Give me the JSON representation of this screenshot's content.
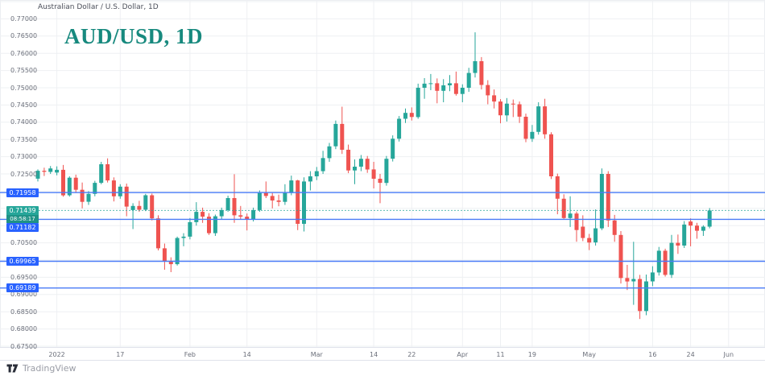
{
  "header": {
    "symbol_title": "Australian Dollar / U.S. Dollar, 1D",
    "watermark_title": "AUD/USD, 1D"
  },
  "footer": {
    "brand": "TradingView"
  },
  "colors": {
    "up": "#26a69a",
    "down": "#ef5350",
    "line_blue": "#4a7bf7",
    "label_blue": "#2962ff",
    "current_teal": "#26a69a",
    "current_timer_teal": "#1f9286",
    "grid": "#eef0f3",
    "axis_text": "#6b6f7a",
    "watermark": "#17897e"
  },
  "chart_data": {
    "type": "candlestick",
    "title": "Australian Dollar / U.S. Dollar",
    "interval": "1D",
    "ylim": [
      0.675,
      0.775
    ],
    "y_tick_step": 0.005,
    "grid": "on",
    "y_axis_labels": [
      "0.77000",
      "0.76500",
      "0.76000",
      "0.75500",
      "0.75000",
      "0.74500",
      "0.74000",
      "0.73500",
      "0.73000",
      "0.72500",
      "0.70500",
      "0.69500",
      "0.69000",
      "0.68500",
      "0.68000",
      "0.67500"
    ],
    "x_ticks": [
      {
        "label": "2022",
        "idx": 3
      },
      {
        "label": "17",
        "idx": 13
      },
      {
        "label": "Feb",
        "idx": 24
      },
      {
        "label": "14",
        "idx": 33
      },
      {
        "label": "Mar",
        "idx": 44
      },
      {
        "label": "14",
        "idx": 53
      },
      {
        "label": "22",
        "idx": 59
      },
      {
        "label": "Apr",
        "idx": 67
      },
      {
        "label": "11",
        "idx": 73
      },
      {
        "label": "19",
        "idx": 78
      },
      {
        "label": "May",
        "idx": 87
      },
      {
        "label": "16",
        "idx": 97
      },
      {
        "label": "24",
        "idx": 103
      },
      {
        "label": "Jun",
        "idx": 109
      }
    ],
    "price_lines": [
      {
        "value": 0.71958,
        "label": "0.71958"
      },
      {
        "value": 0.71182,
        "label": "0.71182"
      },
      {
        "value": 0.69965,
        "label": "0.69965"
      },
      {
        "value": 0.69189,
        "label": "0.69189"
      }
    ],
    "current_price": {
      "value": 0.71439,
      "label": "0.71439",
      "countdown": "08:58:17"
    },
    "candles": [
      [
        0.7236,
        0.7263,
        0.7228,
        0.7259
      ],
      [
        0.7259,
        0.7268,
        0.7244,
        0.7256
      ],
      [
        0.7256,
        0.7273,
        0.725,
        0.7266
      ],
      [
        0.7254,
        0.7272,
        0.7246,
        0.7262
      ],
      [
        0.7262,
        0.7276,
        0.7184,
        0.7188
      ],
      [
        0.7188,
        0.7243,
        0.7184,
        0.7239
      ],
      [
        0.7239,
        0.7248,
        0.7196,
        0.7204
      ],
      [
        0.7204,
        0.7225,
        0.715,
        0.7169
      ],
      [
        0.7169,
        0.72,
        0.716,
        0.7192
      ],
      [
        0.7192,
        0.723,
        0.7185,
        0.7224
      ],
      [
        0.7224,
        0.7285,
        0.722,
        0.7278
      ],
      [
        0.7278,
        0.7295,
        0.7225,
        0.7231
      ],
      [
        0.7231,
        0.724,
        0.717,
        0.7185
      ],
      [
        0.7185,
        0.722,
        0.7178,
        0.7213
      ],
      [
        0.7213,
        0.7222,
        0.7127,
        0.7155
      ],
      [
        0.7145,
        0.7165,
        0.709,
        0.7157
      ],
      [
        0.7157,
        0.7172,
        0.714,
        0.7146
      ],
      [
        0.7146,
        0.7192,
        0.7142,
        0.7188
      ],
      [
        0.7188,
        0.7193,
        0.7115,
        0.7121
      ],
      [
        0.7121,
        0.713,
        0.7028,
        0.7034
      ],
      [
        0.7034,
        0.7048,
        0.6972,
        0.6996
      ],
      [
        0.6996,
        0.7008,
        0.6965,
        0.6988
      ],
      [
        0.6988,
        0.7068,
        0.6984,
        0.7064
      ],
      [
        0.7064,
        0.7078,
        0.704,
        0.7068
      ],
      [
        0.7068,
        0.7122,
        0.706,
        0.711
      ],
      [
        0.711,
        0.7168,
        0.71,
        0.714
      ],
      [
        0.714,
        0.7152,
        0.7108,
        0.7126
      ],
      [
        0.7126,
        0.7136,
        0.7073,
        0.7078
      ],
      [
        0.7078,
        0.7132,
        0.707,
        0.7127
      ],
      [
        0.7127,
        0.7152,
        0.7118,
        0.7145
      ],
      [
        0.7145,
        0.7187,
        0.714,
        0.718
      ],
      [
        0.718,
        0.7249,
        0.7108,
        0.713
      ],
      [
        0.713,
        0.7157,
        0.7118,
        0.7126
      ],
      [
        0.7126,
        0.7135,
        0.7086,
        0.7119
      ],
      [
        0.7119,
        0.7152,
        0.7112,
        0.7145
      ],
      [
        0.7145,
        0.7202,
        0.714,
        0.7196
      ],
      [
        0.7196,
        0.7228,
        0.718,
        0.7186
      ],
      [
        0.7186,
        0.7196,
        0.715,
        0.7173
      ],
      [
        0.7173,
        0.719,
        0.7156,
        0.7169
      ],
      [
        0.7169,
        0.722,
        0.716,
        0.7196
      ],
      [
        0.7196,
        0.7245,
        0.7188,
        0.7231
      ],
      [
        0.7231,
        0.7233,
        0.7087,
        0.7105
      ],
      [
        0.7105,
        0.724,
        0.7083,
        0.7228
      ],
      [
        0.7228,
        0.7258,
        0.7202,
        0.7243
      ],
      [
        0.7243,
        0.727,
        0.7232,
        0.7258
      ],
      [
        0.7258,
        0.7317,
        0.725,
        0.7296
      ],
      [
        0.7296,
        0.734,
        0.7285,
        0.733
      ],
      [
        0.733,
        0.7405,
        0.7322,
        0.7395
      ],
      [
        0.7395,
        0.7445,
        0.7308,
        0.732
      ],
      [
        0.732,
        0.7335,
        0.7252,
        0.726
      ],
      [
        0.726,
        0.7292,
        0.722,
        0.7271
      ],
      [
        0.7271,
        0.7305,
        0.7258,
        0.7294
      ],
      [
        0.7294,
        0.7302,
        0.7253,
        0.7263
      ],
      [
        0.7263,
        0.7285,
        0.7208,
        0.7236
      ],
      [
        0.7236,
        0.725,
        0.7165,
        0.7224
      ],
      [
        0.7224,
        0.7302,
        0.7216,
        0.7294
      ],
      [
        0.7294,
        0.7362,
        0.7286,
        0.7352
      ],
      [
        0.7352,
        0.7418,
        0.7344,
        0.741
      ],
      [
        0.741,
        0.744,
        0.7398,
        0.7427
      ],
      [
        0.7427,
        0.7443,
        0.7405,
        0.7415
      ],
      [
        0.7415,
        0.7512,
        0.741,
        0.75
      ],
      [
        0.75,
        0.7528,
        0.7468,
        0.7512
      ],
      [
        0.7512,
        0.754,
        0.7493,
        0.7513
      ],
      [
        0.7513,
        0.7527,
        0.7455,
        0.7491
      ],
      [
        0.7491,
        0.7525,
        0.7458,
        0.7507
      ],
      [
        0.7507,
        0.7537,
        0.749,
        0.7513
      ],
      [
        0.7513,
        0.7547,
        0.7477,
        0.7482
      ],
      [
        0.7482,
        0.751,
        0.7458,
        0.75
      ],
      [
        0.75,
        0.7558,
        0.7488,
        0.7543
      ],
      [
        0.7543,
        0.7661,
        0.753,
        0.7577
      ],
      [
        0.7577,
        0.7589,
        0.7495,
        0.7508
      ],
      [
        0.7508,
        0.7522,
        0.7452,
        0.7478
      ],
      [
        0.7478,
        0.7495,
        0.744,
        0.746
      ],
      [
        0.746,
        0.7467,
        0.7397,
        0.742
      ],
      [
        0.742,
        0.747,
        0.7402,
        0.7454
      ],
      [
        0.7454,
        0.7466,
        0.7415,
        0.7452
      ],
      [
        0.7452,
        0.746,
        0.7398,
        0.7416
      ],
      [
        0.7416,
        0.7425,
        0.7342,
        0.7352
      ],
      [
        0.7352,
        0.7392,
        0.7343,
        0.7372
      ],
      [
        0.7372,
        0.7458,
        0.7364,
        0.7446
      ],
      [
        0.7446,
        0.7468,
        0.7352,
        0.7365
      ],
      [
        0.7365,
        0.7371,
        0.7235,
        0.7243
      ],
      [
        0.7243,
        0.7251,
        0.7133,
        0.7178
      ],
      [
        0.7178,
        0.7191,
        0.7118,
        0.7122
      ],
      [
        0.7122,
        0.7185,
        0.7096,
        0.7135
      ],
      [
        0.7135,
        0.7141,
        0.7053,
        0.7087
      ],
      [
        0.7097,
        0.713,
        0.7055,
        0.7064
      ],
      [
        0.7064,
        0.7076,
        0.7029,
        0.7051
      ],
      [
        0.7051,
        0.7147,
        0.7042,
        0.7092
      ],
      [
        0.7092,
        0.7266,
        0.7087,
        0.725
      ],
      [
        0.725,
        0.7258,
        0.7096,
        0.7115
      ],
      [
        0.7115,
        0.7131,
        0.7053,
        0.7073
      ],
      [
        0.7073,
        0.7084,
        0.6932,
        0.6948
      ],
      [
        0.6948,
        0.6986,
        0.6913,
        0.6938
      ],
      [
        0.6938,
        0.7053,
        0.687,
        0.6945
      ],
      [
        0.6945,
        0.6957,
        0.6829,
        0.6852
      ],
      [
        0.6852,
        0.6958,
        0.684,
        0.6938
      ],
      [
        0.6938,
        0.6982,
        0.6924,
        0.6964
      ],
      [
        0.6964,
        0.7038,
        0.6955,
        0.7027
      ],
      [
        0.7027,
        0.7033,
        0.6952,
        0.6957
      ],
      [
        0.6957,
        0.7073,
        0.6948,
        0.705
      ],
      [
        0.705,
        0.7074,
        0.7018,
        0.7042
      ],
      [
        0.7042,
        0.7113,
        0.7035,
        0.7103
      ],
      [
        0.7112,
        0.7121,
        0.704,
        0.71
      ],
      [
        0.71,
        0.7108,
        0.7062,
        0.7085
      ],
      [
        0.7085,
        0.7101,
        0.707,
        0.7097
      ],
      [
        0.7097,
        0.7151,
        0.7092,
        0.7144
      ]
    ]
  }
}
